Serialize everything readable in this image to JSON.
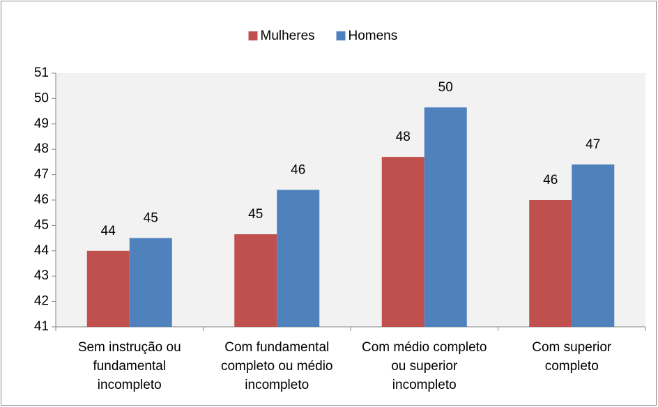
{
  "chart_data": {
    "type": "bar",
    "categories": [
      "Sem instrução ou fundamental incompleto",
      "Com fundamental completo ou médio incompleto",
      "Com médio completo ou superior incompleto",
      "Com superior completo"
    ],
    "series": [
      {
        "name": "Mulheres",
        "color": "#c0504d",
        "values": [
          44.0,
          44.65,
          47.7,
          46.0
        ],
        "value_labels": [
          "44",
          "45",
          "48",
          "46"
        ]
      },
      {
        "name": "Homens",
        "color": "#4f81bd",
        "values": [
          44.5,
          46.4,
          49.65,
          47.4
        ],
        "value_labels": [
          "45",
          "46",
          "50",
          "47"
        ]
      }
    ],
    "ylim": [
      41,
      51
    ],
    "yticks": [
      41,
      42,
      43,
      44,
      45,
      46,
      47,
      48,
      49,
      50,
      51
    ],
    "legend": "top"
  }
}
